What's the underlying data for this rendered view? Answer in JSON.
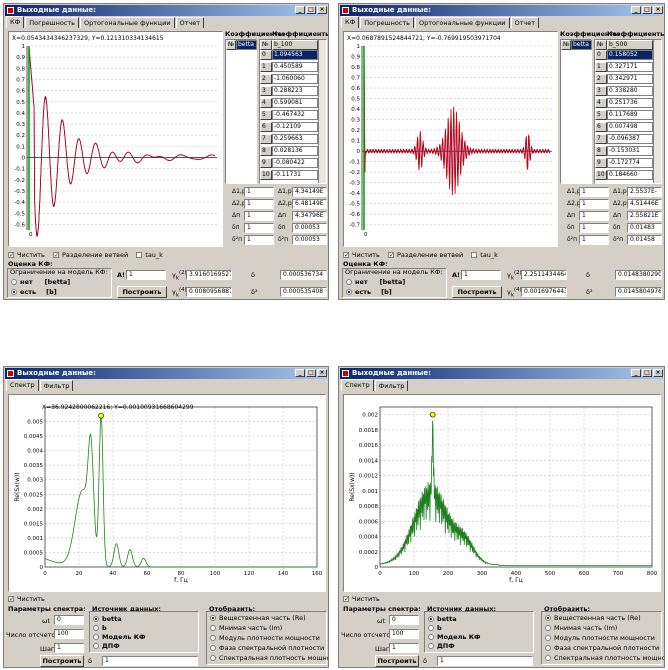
{
  "windows": [
    {
      "title": "Выходные данные:",
      "tabs": [
        "КФ",
        "Погрешность",
        "Ортогональные функции",
        "Отчет"
      ],
      "coord": "X=0.0543434346237329; Y=0.121310334134615",
      "yticks": [
        "1",
        "0.9",
        "0.8",
        "0.7",
        "0.6",
        "0.5",
        "0.4",
        "0.3",
        "0.2",
        "0.1",
        "0",
        "-0.1",
        "-0.2",
        "-0.3",
        "-0.4",
        "-0.5",
        "-0.6"
      ],
      "coef_header": "Коэффициенты",
      "num_header": "№",
      "list_item": "betta",
      "b_header": "b_100",
      "b_rows": [
        {
          "n": "0",
          "v": "1.094563"
        },
        {
          "n": "1",
          "v": "0.450589"
        },
        {
          "n": "2",
          "v": "-1.060060"
        },
        {
          "n": "3",
          "v": "0.288223"
        },
        {
          "n": "4",
          "v": "0.599081"
        },
        {
          "n": "5",
          "v": "-0.467432"
        },
        {
          "n": "6",
          "v": "-0.12109"
        },
        {
          "n": "7",
          "v": "0.259663"
        },
        {
          "n": "8",
          "v": "0.028136"
        },
        {
          "n": "9",
          "v": "-0.080422"
        },
        {
          "n": "10",
          "v": "-0.11731"
        }
      ],
      "params": [
        {
          "sym": "Δ1,р",
          "a": "1",
          "sym2": "Δ1,р",
          "b": "4.34149E"
        },
        {
          "sym": "Δ2,р",
          "a": "1",
          "sym2": "Δ2,р",
          "b": "6.48149E"
        },
        {
          "sym": "Δп",
          "a": "1",
          "sym2": "Δп",
          "b": "4.34796E"
        },
        {
          "sym": "δп",
          "a": "1",
          "sym2": "δп",
          "b": "0.00053"
        },
        {
          "sym": "δ²п",
          "a": "1",
          "sym2": "δ²п",
          "b": "0.00053"
        }
      ],
      "checks": [
        "Чистить",
        "Разделение ветвей",
        "tau_k"
      ],
      "est_title": "Оценка КФ:",
      "est_sub": "Ограничение на модель КФ:",
      "opt_no": "нет",
      "opt_no_val": "[betta]",
      "opt_yes": "есть",
      "opt_yes_val": "[b]",
      "a_label": "A!",
      "a_value": "1",
      "btn": "Построить",
      "r1": "3.9160169527",
      "r2": "0.0080956887",
      "d1": "0.000536734",
      "d2": "0.000535408",
      "chart_data": {
        "type": "line",
        "ylim": [
          -0.65,
          1.0
        ],
        "series": [
          {
            "name": "",
            "color": "#d00000"
          },
          {
            "name": "",
            "color": "#0000c0"
          }
        ],
        "kind": "damped"
      }
    },
    {
      "title": "Выходные данные:",
      "tabs": [
        "КФ",
        "Погрешность",
        "Ортогональные функции",
        "Отчет"
      ],
      "coord": "X=0.0687891524844721; Y=-0.769919503971704",
      "yticks": [
        "1",
        "0.9",
        "0.8",
        "0.7",
        "0.6",
        "0.5",
        "0.4",
        "0.3",
        "0.2",
        "0.1",
        "0",
        "-0.1",
        "-0.2",
        "-0.3",
        "-0.4",
        "-0.5",
        "-0.6",
        "-0.7"
      ],
      "coef_header": "Коэффициенты",
      "num_header": "№",
      "list_item": "betta",
      "b_header": "b_500",
      "b_rows": [
        {
          "n": "0",
          "v": "0.158052"
        },
        {
          "n": "1",
          "v": "0.327171"
        },
        {
          "n": "2",
          "v": "0.342971"
        },
        {
          "n": "3",
          "v": "0.338280"
        },
        {
          "n": "4",
          "v": "0.251736"
        },
        {
          "n": "5",
          "v": "0.117689"
        },
        {
          "n": "6",
          "v": "0.007498"
        },
        {
          "n": "7",
          "v": "-0.096387"
        },
        {
          "n": "8",
          "v": "-0.153031"
        },
        {
          "n": "9",
          "v": "-0.172774"
        },
        {
          "n": "10",
          "v": "0.184660"
        }
      ],
      "params": [
        {
          "sym": "Δ1,р",
          "a": "1",
          "sym2": "Δ1,р",
          "b": "2.5537E-"
        },
        {
          "sym": "Δ2,р",
          "a": "1",
          "sym2": "Δ2,р",
          "b": "4.51446E"
        },
        {
          "sym": "Δп",
          "a": "1",
          "sym2": "Δп",
          "b": "2.55821E"
        },
        {
          "sym": "δп",
          "a": "1",
          "sym2": "δп",
          "b": "0.01483"
        },
        {
          "sym": "δ²п",
          "a": "1",
          "sym2": "δ²п",
          "b": "0.01458"
        }
      ],
      "checks": [
        "Чистить",
        "Разделение ветвей",
        "tau_k"
      ],
      "est_title": "Оценка КФ:",
      "est_sub": "Ограничение на модель КФ:",
      "opt_no": "нет",
      "opt_no_val": "[betta]",
      "opt_yes": "есть",
      "opt_yes_val": "[b]",
      "a_label": "A!",
      "a_value": "1",
      "btn": "Построить",
      "r1": "2.2511434464",
      "r2": "0.0016976443",
      "d1": "0.0148380290",
      "d2": "0.0145804976",
      "chart_data": {
        "type": "line",
        "ylim": [
          -0.75,
          1.0
        ],
        "series": [
          {
            "name": "",
            "color": "#d00000"
          },
          {
            "name": "",
            "color": "#0000c0"
          }
        ],
        "kind": "burst"
      }
    },
    {
      "title": "Выходные данные:",
      "tabs": [
        "Спектр",
        "Фильтр"
      ],
      "coord": "X=36.9242800062216; Y=0.00100931668604299",
      "yticks": [
        "0.005",
        "0.0045",
        "0.004",
        "0.0035",
        "0.003",
        "0.0025",
        "0.002",
        "0.0015",
        "0.001",
        "0.0005",
        "0"
      ],
      "xticks": [
        "0",
        "20",
        "40",
        "60",
        "80",
        "100",
        "120",
        "140",
        "160"
      ],
      "xlabel": "f, Гц",
      "ylabel": "Re(Sx(w))",
      "check": "Чистить",
      "spec_title": "Параметры спектра:",
      "dt_label": "ωt",
      "dt_val": "0",
      "n_label": "Число отсчетов",
      "n_val": "100",
      "step_label": "Шаг",
      "step_val": "1",
      "src_title": "Источник данных:",
      "src": [
        "betta",
        "b",
        "Модель КФ",
        "ДПФ"
      ],
      "show_title": "Отобразить:",
      "show": [
        "Вещественная часть (Re)",
        "Мнимая часть (Im)",
        "Модуль плотности мощности",
        "Фаза спектральной плотности",
        "Спектральная плотность мощности"
      ],
      "btn": "Построить",
      "delta_label": "δ",
      "delta_val": "1",
      "chart_data": {
        "type": "line",
        "xlim": [
          0,
          160
        ],
        "ylim": [
          0,
          0.0055
        ],
        "xlabel": "f, Гц",
        "ylabel": "Re(Sx(w))",
        "kind": "spec1",
        "peak_x": 33,
        "peak_y": 0.0052
      }
    },
    {
      "title": "Выходные данные:",
      "tabs": [
        "Спектр",
        "Фильтр"
      ],
      "coord": "",
      "yticks": [
        "0.002",
        "0.0018",
        "0.0016",
        "0.0014",
        "0.0012",
        "0.001",
        "0.0008",
        "0.0006",
        "0.0004",
        "0.0002",
        "0"
      ],
      "xticks": [
        "0",
        "100",
        "200",
        "300",
        "400",
        "500",
        "600",
        "700",
        "800"
      ],
      "xlabel": "f, Гц",
      "ylabel": "Re(Sx(w))",
      "check": "Чистить",
      "spec_title": "Параметры спектра:",
      "dt_label": "ωt",
      "dt_val": "0",
      "n_label": "Число отсчетов",
      "n_val": "100",
      "step_label": "Шаг",
      "step_val": "1",
      "src_title": "Источник данных:",
      "src": [
        "betta",
        "b",
        "Модель КФ",
        "ДПФ"
      ],
      "show_title": "Отобразить:",
      "show": [
        "Вещественная часть (Re)",
        "Мнимая часть (Im)",
        "Модуль плотности мощности",
        "Фаза спектральной плотности",
        "Спектральная плотность мощности"
      ],
      "btn": "Построить",
      "delta_label": "δ",
      "delta_val": "1",
      "chart_data": {
        "type": "line",
        "xlim": [
          0,
          800
        ],
        "ylim": [
          0,
          0.0021
        ],
        "xlabel": "f, Гц",
        "ylabel": "Re(Sx(w))",
        "kind": "spec2",
        "peak_x": 155,
        "peak_y": 0.002
      }
    }
  ]
}
